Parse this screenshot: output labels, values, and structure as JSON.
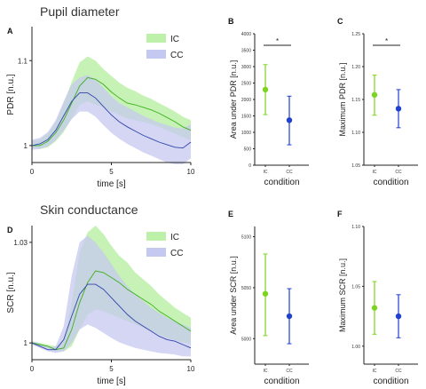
{
  "colors": {
    "ic_fill": "#bdf0a8",
    "cc_fill": "#c5c8f0",
    "ic_line": "#3db01f",
    "cc_line": "#3046a8",
    "ic_point": "#7ed321",
    "cc_point": "#2040d0"
  },
  "chart_data": [
    {
      "id": "A",
      "type": "line",
      "panel_label": "A",
      "title": "Pupil diameter",
      "xlabel": "time [s]",
      "ylabel": "PDR [n.u.]",
      "xlim": [
        0,
        10
      ],
      "ylim": [
        0.98,
        1.14
      ],
      "xticks": [
        "0",
        "5",
        "10"
      ],
      "yticks": [
        "1",
        "1.1"
      ],
      "ytick_values": [
        1,
        1.1
      ],
      "legend": [
        "IC",
        "CC"
      ],
      "legend_position": "top-right",
      "series": [
        {
          "name": "IC",
          "x": [
            0,
            0.5,
            1,
            1.5,
            2,
            2.5,
            3,
            3.5,
            4,
            4.5,
            5,
            5.5,
            6,
            6.5,
            7,
            7.5,
            8,
            8.5,
            9,
            9.5,
            10
          ],
          "mean": [
            1.0,
            1.0,
            1.005,
            1.015,
            1.03,
            1.05,
            1.07,
            1.08,
            1.078,
            1.072,
            1.063,
            1.056,
            1.05,
            1.048,
            1.045,
            1.042,
            1.038,
            1.033,
            1.028,
            1.022,
            1.018
          ],
          "upper": [
            1.005,
            1.007,
            1.014,
            1.027,
            1.05,
            1.075,
            1.098,
            1.105,
            1.1,
            1.09,
            1.082,
            1.074,
            1.068,
            1.064,
            1.059,
            1.055,
            1.05,
            1.045,
            1.04,
            1.034,
            1.03
          ],
          "lower": [
            0.997,
            0.996,
            0.998,
            1.005,
            1.016,
            1.032,
            1.048,
            1.052,
            1.048,
            1.045,
            1.04,
            1.036,
            1.032,
            1.03,
            1.028,
            1.025,
            1.022,
            1.018,
            1.014,
            1.01,
            1.006
          ]
        },
        {
          "name": "CC",
          "x": [
            0,
            0.5,
            1,
            1.5,
            2,
            2.5,
            3,
            3.5,
            4,
            4.5,
            5,
            5.5,
            6,
            6.5,
            7,
            7.5,
            8,
            8.5,
            9,
            9.5,
            10
          ],
          "mean": [
            1.0,
            1.002,
            1.007,
            1.018,
            1.035,
            1.052,
            1.062,
            1.062,
            1.056,
            1.046,
            1.036,
            1.028,
            1.022,
            1.017,
            1.012,
            1.008,
            1.004,
            1.001,
            0.998,
            0.997,
            1.004
          ],
          "upper": [
            1.007,
            1.009,
            1.016,
            1.03,
            1.052,
            1.072,
            1.08,
            1.083,
            1.078,
            1.068,
            1.058,
            1.05,
            1.045,
            1.04,
            1.035,
            1.031,
            1.027,
            1.024,
            1.021,
            1.02,
            1.025
          ],
          "lower": [
            0.995,
            0.996,
            0.999,
            1.006,
            1.018,
            1.031,
            1.04,
            1.04,
            1.034,
            1.024,
            1.015,
            1.008,
            1.002,
            0.997,
            0.992,
            0.988,
            0.984,
            0.98,
            0.978,
            0.978,
            0.985
          ]
        }
      ]
    },
    {
      "id": "B",
      "type": "scatter",
      "panel_label": "B",
      "xlabel": "condition",
      "ylabel": "Area under PDR [n.u.]",
      "ylim": [
        0,
        4000
      ],
      "yticks": [
        "0",
        "500",
        "1000",
        "1500",
        "2000",
        "2500",
        "3000",
        "3500",
        "4000"
      ],
      "ytick_values": [
        0,
        500,
        1000,
        1500,
        2000,
        2500,
        3000,
        3500,
        4000
      ],
      "categories": [
        "IC",
        "CC"
      ],
      "values": [
        2300,
        1370
      ],
      "errors_low": [
        1540,
        620
      ],
      "errors_high": [
        3060,
        2100
      ],
      "significance": "*"
    },
    {
      "id": "C",
      "type": "scatter",
      "panel_label": "C",
      "xlabel": "condition",
      "ylabel": "Maximum PDR [n.u.]",
      "ylim": [
        1.05,
        1.25
      ],
      "yticks": [
        "1.05",
        "1.10",
        "1.15",
        "1.20",
        "1.25"
      ],
      "ytick_values": [
        1.05,
        1.1,
        1.15,
        1.2,
        1.25
      ],
      "categories": [
        "IC",
        "CC"
      ],
      "values": [
        1.157,
        1.136
      ],
      "errors_low": [
        1.126,
        1.107
      ],
      "errors_high": [
        1.187,
        1.165
      ],
      "significance": "*"
    },
    {
      "id": "D",
      "type": "line",
      "panel_label": "D",
      "title": "Skin conductance",
      "xlabel": "time [s]",
      "ylabel": "SCR [n.u.]",
      "xlim": [
        0,
        10
      ],
      "ylim": [
        0.995,
        1.035
      ],
      "xticks": [
        "0",
        "5",
        "10"
      ],
      "yticks": [
        "1",
        "1.03"
      ],
      "ytick_values": [
        1,
        1.03
      ],
      "legend": [
        "IC",
        "CC"
      ],
      "legend_position": "top-right",
      "series": [
        {
          "name": "IC",
          "x": [
            0,
            0.5,
            1,
            1.5,
            2,
            2.5,
            3,
            3.5,
            4,
            4.5,
            5,
            5.5,
            6,
            6.5,
            7,
            7.5,
            8,
            8.5,
            9,
            9.5,
            10
          ],
          "mean": [
            1.0,
            0.9995,
            0.999,
            0.998,
            0.9985,
            1.004,
            1.012,
            1.018,
            1.0215,
            1.021,
            1.0195,
            1.018,
            1.016,
            1.0145,
            1.013,
            1.0115,
            1.0095,
            1.008,
            1.0065,
            1.005,
            1.0035
          ],
          "upper": [
            1.0005,
            1.0,
            0.9995,
            0.999,
            1.0005,
            1.012,
            1.027,
            1.033,
            1.035,
            1.0325,
            1.029,
            1.026,
            1.024,
            1.021,
            1.019,
            1.017,
            1.0145,
            1.0125,
            1.0105,
            1.009,
            1.0075
          ],
          "lower": [
            0.9995,
            0.999,
            0.9985,
            0.9975,
            0.9975,
            0.999,
            1.004,
            1.0085,
            1.01,
            1.0095,
            1.0085,
            1.0075,
            1.0065,
            1.0055,
            1.0045,
            1.0035,
            1.0025,
            1.0015,
            1.0008,
            1.0002,
            0.9998
          ]
        },
        {
          "name": "CC",
          "x": [
            0,
            0.5,
            1,
            1.5,
            2,
            2.5,
            3,
            3.5,
            4,
            4.5,
            5,
            5.5,
            6,
            6.5,
            7,
            7.5,
            8,
            8.5,
            9,
            9.5,
            10
          ],
          "mean": [
            1.0,
            0.999,
            0.998,
            0.998,
            1.001,
            1.008,
            1.0145,
            1.0175,
            1.0175,
            1.016,
            1.0135,
            1.011,
            1.0085,
            1.0065,
            1.005,
            1.0035,
            1.002,
            1.001,
            1.0005,
            0.9995,
            0.9985
          ],
          "upper": [
            1.0005,
            0.9998,
            0.9988,
            0.999,
            1.005,
            1.02,
            1.03,
            1.032,
            1.03,
            1.027,
            1.0235,
            1.02,
            1.017,
            1.0145,
            1.0125,
            1.0105,
            1.009,
            1.0075,
            1.0065,
            1.0055,
            1.0045
          ],
          "lower": [
            0.9995,
            0.9985,
            0.9975,
            0.997,
            0.9975,
            1.0,
            1.004,
            1.0055,
            1.0045,
            1.003,
            1.0015,
            1.0002,
            0.9993,
            0.9985,
            0.998,
            0.9975,
            0.997,
            0.9968,
            0.9965,
            0.996,
            0.996
          ]
        }
      ]
    },
    {
      "id": "E",
      "type": "scatter",
      "panel_label": "E",
      "xlabel": "condition",
      "ylabel": "Area under SCR [n.u.]",
      "ylim": [
        4975,
        5110
      ],
      "yticks": [
        "5000",
        "5050",
        "5100"
      ],
      "ytick_values": [
        5000,
        5050,
        5100
      ],
      "categories": [
        "IC",
        "CC"
      ],
      "values": [
        5044,
        5022
      ],
      "errors_low": [
        5003,
        4995
      ],
      "errors_high": [
        5083,
        5049
      ]
    },
    {
      "id": "F",
      "type": "scatter",
      "panel_label": "F",
      "xlabel": "condition",
      "ylabel": "Maximum SCR [n.u.]",
      "ylim": [
        0.985,
        1.1
      ],
      "yticks": [
        "1.00",
        "1.05",
        "1.10"
      ],
      "ytick_values": [
        1.0,
        1.05,
        1.1
      ],
      "categories": [
        "IC",
        "CC"
      ],
      "values": [
        1.032,
        1.025
      ],
      "errors_low": [
        1.01,
        1.007
      ],
      "errors_high": [
        1.054,
        1.043
      ]
    }
  ]
}
